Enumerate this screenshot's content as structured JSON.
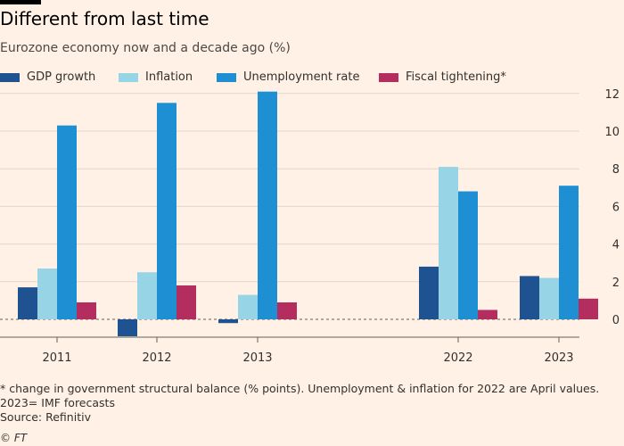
{
  "header": {
    "title": "Different from last time",
    "subtitle": "Eurozone economy now and a decade ago (%)"
  },
  "footnotes": [
    "* change in government structural balance (% points). Unemployment & inflation for 2022 are April values.",
    "2023= IMF forecasts",
    "Source: Refinitiv"
  ],
  "credit": "© FT",
  "chart_data": {
    "type": "bar",
    "title": "Different from last time",
    "subtitle": "Eurozone economy now and a decade ago (%)",
    "categories": [
      "2011",
      "2012",
      "2013",
      "2022",
      "2023"
    ],
    "series": [
      {
        "name": "GDP growth",
        "color": "#1f5290",
        "values": [
          1.7,
          -0.9,
          -0.2,
          2.8,
          2.3
        ]
      },
      {
        "name": "Inflation",
        "color": "#96d4e6",
        "values": [
          2.7,
          2.5,
          1.3,
          8.1,
          2.2
        ]
      },
      {
        "name": "Unemployment rate",
        "color": "#1e8fd2",
        "values": [
          10.3,
          11.5,
          12.1,
          6.8,
          7.1
        ]
      },
      {
        "name": "Fiscal tightening*",
        "color": "#b42d5f",
        "values": [
          0.9,
          1.8,
          0.9,
          0.5,
          1.1
        ]
      }
    ],
    "y_ticks": [
      0,
      2,
      4,
      6,
      8,
      10,
      12
    ],
    "ylim": [
      -1,
      12.5
    ],
    "xlabel": "",
    "ylabel": "",
    "grid": true,
    "legend": "top",
    "y_axis_side": "right"
  }
}
